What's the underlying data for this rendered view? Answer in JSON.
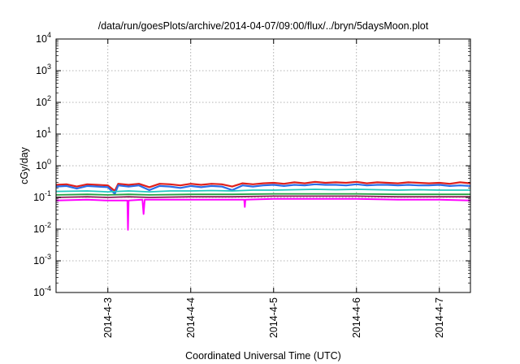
{
  "chart_data": {
    "type": "line",
    "title": "/data/run/goesPlots/archive/2014-04-07/09:00/flux/../bryn/5daysMoon.plot",
    "xlabel": "Coordinated Universal Time (UTC)",
    "ylabel": "cGy/day",
    "yscale": "log",
    "ylim": [
      0.0001,
      10000
    ],
    "y_ticks": [
      {
        "value": 0.0001,
        "base": "10",
        "exp": "-4"
      },
      {
        "value": 0.001,
        "base": "10",
        "exp": "-3"
      },
      {
        "value": 0.01,
        "base": "10",
        "exp": "-2"
      },
      {
        "value": 0.1,
        "base": "10",
        "exp": "-1"
      },
      {
        "value": 1,
        "base": "10",
        "exp": "0"
      },
      {
        "value": 10,
        "base": "10",
        "exp": "1"
      },
      {
        "value": 100,
        "base": "10",
        "exp": "2"
      },
      {
        "value": 1000,
        "base": "10",
        "exp": "3"
      },
      {
        "value": 10000,
        "base": "10",
        "exp": "4"
      }
    ],
    "xlim": [
      "2014-04-02T09:00",
      "2014-04-07T09:00"
    ],
    "x_ticks": [
      {
        "value": "2014-04-03T00:00",
        "label": "2014-4-3"
      },
      {
        "value": "2014-04-04T00:00",
        "label": "2014-4-4"
      },
      {
        "value": "2014-04-05T00:00",
        "label": "2014-4-5"
      },
      {
        "value": "2014-04-06T00:00",
        "label": "2014-4-6"
      },
      {
        "value": "2014-04-07T00:00",
        "label": "2014-4-7"
      }
    ],
    "grid": true,
    "series": [
      {
        "color": "#e0201c",
        "width": 2.2,
        "points": [
          [
            "2014-04-02T09:00",
            0.25
          ],
          [
            "2014-04-02T12:00",
            0.26
          ],
          [
            "2014-04-02T15:00",
            0.22
          ],
          [
            "2014-04-02T18:00",
            0.26
          ],
          [
            "2014-04-02T21:00",
            0.25
          ],
          [
            "2014-04-03T00:00",
            0.24
          ],
          [
            "2014-04-03T02:00",
            0.16
          ],
          [
            "2014-04-03T03:00",
            0.27
          ],
          [
            "2014-04-03T06:00",
            0.25
          ],
          [
            "2014-04-03T09:00",
            0.27
          ],
          [
            "2014-04-03T12:00",
            0.21
          ],
          [
            "2014-04-03T15:00",
            0.27
          ],
          [
            "2014-04-03T18:00",
            0.26
          ],
          [
            "2014-04-03T21:00",
            0.24
          ],
          [
            "2014-04-04T00:00",
            0.27
          ],
          [
            "2014-04-04T03:00",
            0.25
          ],
          [
            "2014-04-04T06:00",
            0.27
          ],
          [
            "2014-04-04T09:00",
            0.26
          ],
          [
            "2014-04-04T12:00",
            0.22
          ],
          [
            "2014-04-04T15:00",
            0.28
          ],
          [
            "2014-04-04T18:00",
            0.26
          ],
          [
            "2014-04-04T21:00",
            0.28
          ],
          [
            "2014-04-05T00:00",
            0.29
          ],
          [
            "2014-04-05T03:00",
            0.27
          ],
          [
            "2014-04-05T06:00",
            0.3
          ],
          [
            "2014-04-05T09:00",
            0.28
          ],
          [
            "2014-04-05T12:00",
            0.31
          ],
          [
            "2014-04-05T15:00",
            0.29
          ],
          [
            "2014-04-05T18:00",
            0.3
          ],
          [
            "2014-04-05T21:00",
            0.29
          ],
          [
            "2014-04-06T00:00",
            0.31
          ],
          [
            "2014-04-06T03:00",
            0.28
          ],
          [
            "2014-04-06T06:00",
            0.3
          ],
          [
            "2014-04-06T09:00",
            0.29
          ],
          [
            "2014-04-06T12:00",
            0.28
          ],
          [
            "2014-04-06T15:00",
            0.3
          ],
          [
            "2014-04-06T18:00",
            0.29
          ],
          [
            "2014-04-06T21:00",
            0.28
          ],
          [
            "2014-04-07T00:00",
            0.29
          ],
          [
            "2014-04-07T03:00",
            0.27
          ],
          [
            "2014-04-07T06:00",
            0.3
          ],
          [
            "2014-04-07T09:00",
            0.28
          ]
        ]
      },
      {
        "color": "#2a6ee8",
        "width": 2.2,
        "points": [
          [
            "2014-04-02T09:00",
            0.22
          ],
          [
            "2014-04-02T12:00",
            0.23
          ],
          [
            "2014-04-02T15:00",
            0.19
          ],
          [
            "2014-04-02T18:00",
            0.23
          ],
          [
            "2014-04-02T21:00",
            0.22
          ],
          [
            "2014-04-03T00:00",
            0.21
          ],
          [
            "2014-04-03T02:00",
            0.13
          ],
          [
            "2014-04-03T03:00",
            0.24
          ],
          [
            "2014-04-03T06:00",
            0.22
          ],
          [
            "2014-04-03T09:00",
            0.24
          ],
          [
            "2014-04-03T12:00",
            0.17
          ],
          [
            "2014-04-03T15:00",
            0.23
          ],
          [
            "2014-04-03T18:00",
            0.22
          ],
          [
            "2014-04-03T21:00",
            0.2
          ],
          [
            "2014-04-04T00:00",
            0.23
          ],
          [
            "2014-04-04T03:00",
            0.21
          ],
          [
            "2014-04-04T06:00",
            0.23
          ],
          [
            "2014-04-04T09:00",
            0.22
          ],
          [
            "2014-04-04T12:00",
            0.17
          ],
          [
            "2014-04-04T15:00",
            0.24
          ],
          [
            "2014-04-04T18:00",
            0.22
          ],
          [
            "2014-04-04T21:00",
            0.24
          ],
          [
            "2014-04-05T00:00",
            0.25
          ],
          [
            "2014-04-05T03:00",
            0.23
          ],
          [
            "2014-04-05T06:00",
            0.25
          ],
          [
            "2014-04-05T09:00",
            0.24
          ],
          [
            "2014-04-05T12:00",
            0.26
          ],
          [
            "2014-04-05T15:00",
            0.25
          ],
          [
            "2014-04-05T18:00",
            0.25
          ],
          [
            "2014-04-05T21:00",
            0.24
          ],
          [
            "2014-04-06T00:00",
            0.26
          ],
          [
            "2014-04-06T03:00",
            0.24
          ],
          [
            "2014-04-06T06:00",
            0.25
          ],
          [
            "2014-04-06T09:00",
            0.25
          ],
          [
            "2014-04-06T12:00",
            0.24
          ],
          [
            "2014-04-06T15:00",
            0.25
          ],
          [
            "2014-04-06T18:00",
            0.24
          ],
          [
            "2014-04-06T21:00",
            0.24
          ],
          [
            "2014-04-07T00:00",
            0.25
          ],
          [
            "2014-04-07T03:00",
            0.23
          ],
          [
            "2014-04-07T06:00",
            0.24
          ],
          [
            "2014-04-07T09:00",
            0.23
          ]
        ]
      },
      {
        "color": "#20c8c0",
        "width": 1.8,
        "points": [
          [
            "2014-04-02T09:00",
            0.155
          ],
          [
            "2014-04-02T18:00",
            0.16
          ],
          [
            "2014-04-03T00:00",
            0.15
          ],
          [
            "2014-04-03T06:00",
            0.16
          ],
          [
            "2014-04-03T12:00",
            0.15
          ],
          [
            "2014-04-03T18:00",
            0.16
          ],
          [
            "2014-04-04T00:00",
            0.16
          ],
          [
            "2014-04-04T06:00",
            0.165
          ],
          [
            "2014-04-04T12:00",
            0.16
          ],
          [
            "2014-04-04T18:00",
            0.17
          ],
          [
            "2014-04-05T00:00",
            0.17
          ],
          [
            "2014-04-05T06:00",
            0.175
          ],
          [
            "2014-04-05T12:00",
            0.18
          ],
          [
            "2014-04-05T18:00",
            0.175
          ],
          [
            "2014-04-06T00:00",
            0.18
          ],
          [
            "2014-04-06T06:00",
            0.175
          ],
          [
            "2014-04-06T12:00",
            0.17
          ],
          [
            "2014-04-06T18:00",
            0.175
          ],
          [
            "2014-04-07T00:00",
            0.17
          ],
          [
            "2014-04-07T09:00",
            0.17
          ]
        ]
      },
      {
        "color": "#22a040",
        "width": 1.8,
        "points": [
          [
            "2014-04-02T09:00",
            0.12
          ],
          [
            "2014-04-02T18:00",
            0.125
          ],
          [
            "2014-04-03T00:00",
            0.12
          ],
          [
            "2014-04-03T06:00",
            0.125
          ],
          [
            "2014-04-03T12:00",
            0.12
          ],
          [
            "2014-04-04T00:00",
            0.125
          ],
          [
            "2014-04-04T12:00",
            0.125
          ],
          [
            "2014-04-05T00:00",
            0.13
          ],
          [
            "2014-04-05T12:00",
            0.13
          ],
          [
            "2014-04-06T00:00",
            0.13
          ],
          [
            "2014-04-06T12:00",
            0.125
          ],
          [
            "2014-04-07T00:00",
            0.125
          ],
          [
            "2014-04-07T09:00",
            0.125
          ]
        ]
      },
      {
        "color": "#8e1f5c",
        "width": 1.8,
        "points": [
          [
            "2014-04-02T09:00",
            0.1
          ],
          [
            "2014-04-02T18:00",
            0.105
          ],
          [
            "2014-04-03T00:00",
            0.1
          ],
          [
            "2014-04-03T06:00",
            0.105
          ],
          [
            "2014-04-03T12:00",
            0.1
          ],
          [
            "2014-04-04T00:00",
            0.105
          ],
          [
            "2014-04-04T12:00",
            0.105
          ],
          [
            "2014-04-05T00:00",
            0.11
          ],
          [
            "2014-04-05T12:00",
            0.11
          ],
          [
            "2014-04-06T00:00",
            0.11
          ],
          [
            "2014-04-06T12:00",
            0.105
          ],
          [
            "2014-04-07T00:00",
            0.105
          ],
          [
            "2014-04-07T09:00",
            0.105
          ]
        ]
      },
      {
        "color": "#ff00ff",
        "width": 2.0,
        "points": [
          [
            "2014-04-02T09:00",
            0.08
          ],
          [
            "2014-04-02T18:00",
            0.085
          ],
          [
            "2014-04-03T00:00",
            0.08
          ],
          [
            "2014-04-03T05:40",
            0.08
          ],
          [
            "2014-04-03T05:50",
            0.0095
          ],
          [
            "2014-04-03T06:00",
            0.08
          ],
          [
            "2014-04-03T10:00",
            0.085
          ],
          [
            "2014-04-03T10:20",
            0.03
          ],
          [
            "2014-04-03T10:40",
            0.085
          ],
          [
            "2014-04-04T00:00",
            0.085
          ],
          [
            "2014-04-04T12:00",
            0.085
          ],
          [
            "2014-04-04T15:30",
            0.085
          ],
          [
            "2014-04-04T15:40",
            0.05
          ],
          [
            "2014-04-04T15:50",
            0.085
          ],
          [
            "2014-04-05T00:00",
            0.09
          ],
          [
            "2014-04-05T12:00",
            0.09
          ],
          [
            "2014-04-06T00:00",
            0.09
          ],
          [
            "2014-04-06T12:00",
            0.085
          ],
          [
            "2014-04-07T00:00",
            0.085
          ],
          [
            "2014-04-07T09:00",
            0.08
          ]
        ]
      }
    ]
  }
}
